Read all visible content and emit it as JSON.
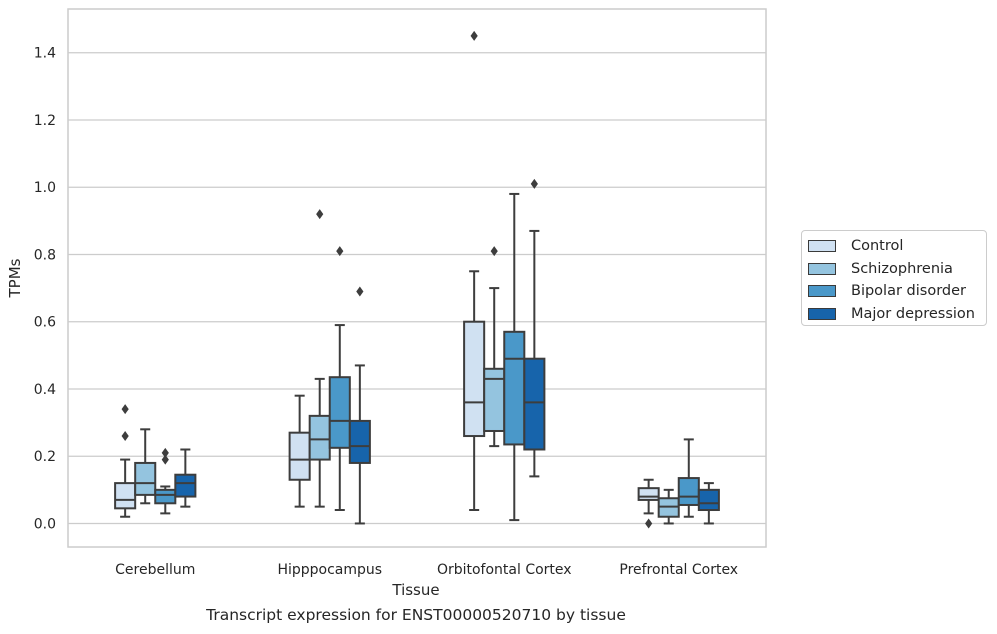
{
  "chart_data": {
    "type": "boxplot",
    "xlabel": "Tissue",
    "ylabel": "TPMs",
    "caption": "Transcript expression for ENST00000520710 by tissue",
    "ylim": [
      -0.07,
      1.53
    ],
    "yticks": [
      0.0,
      0.2,
      0.4,
      0.6,
      0.8,
      1.0,
      1.2,
      1.4
    ],
    "ytick_labels": [
      "0.0",
      "0.2",
      "0.4",
      "0.6",
      "0.8",
      "1.0",
      "1.2",
      "1.4"
    ],
    "categories": [
      "Cerebellum",
      "Hipppocampus",
      "Orbitofontal Cortex",
      "Prefrontal Cortex"
    ],
    "grid": "horizontal",
    "legend_position": "right",
    "series": [
      {
        "name": "Control",
        "color": "#d0e1f2",
        "boxes": [
          {
            "whislo": 0.02,
            "q1": 0.045,
            "med": 0.07,
            "q3": 0.12,
            "whishi": 0.19,
            "fliers": [
              0.26,
              0.34
            ]
          },
          {
            "whislo": 0.05,
            "q1": 0.13,
            "med": 0.19,
            "q3": 0.27,
            "whishi": 0.38,
            "fliers": []
          },
          {
            "whislo": 0.04,
            "q1": 0.26,
            "med": 0.36,
            "q3": 0.6,
            "whishi": 0.75,
            "fliers": [
              1.45
            ]
          },
          {
            "whislo": 0.03,
            "q1": 0.07,
            "med": 0.08,
            "q3": 0.105,
            "whishi": 0.13,
            "fliers": [
              0.0
            ]
          }
        ]
      },
      {
        "name": "Schizophrenia",
        "color": "#94c4df",
        "boxes": [
          {
            "whislo": 0.06,
            "q1": 0.085,
            "med": 0.12,
            "q3": 0.18,
            "whishi": 0.28,
            "fliers": []
          },
          {
            "whislo": 0.05,
            "q1": 0.19,
            "med": 0.25,
            "q3": 0.32,
            "whishi": 0.43,
            "fliers": [
              0.92
            ]
          },
          {
            "whislo": 0.23,
            "q1": 0.275,
            "med": 0.43,
            "q3": 0.46,
            "whishi": 0.7,
            "fliers": [
              0.81
            ]
          },
          {
            "whislo": 0.0,
            "q1": 0.02,
            "med": 0.05,
            "q3": 0.075,
            "whishi": 0.1,
            "fliers": []
          }
        ]
      },
      {
        "name": "Bipolar disorder",
        "color": "#4a98c9",
        "boxes": [
          {
            "whislo": 0.03,
            "q1": 0.06,
            "med": 0.085,
            "q3": 0.1,
            "whishi": 0.11,
            "fliers": [
              0.19,
              0.21
            ]
          },
          {
            "whislo": 0.04,
            "q1": 0.225,
            "med": 0.305,
            "q3": 0.435,
            "whishi": 0.59,
            "fliers": [
              0.81
            ]
          },
          {
            "whislo": 0.01,
            "q1": 0.235,
            "med": 0.49,
            "q3": 0.57,
            "whishi": 0.98,
            "fliers": []
          },
          {
            "whislo": 0.02,
            "q1": 0.055,
            "med": 0.08,
            "q3": 0.135,
            "whishi": 0.25,
            "fliers": []
          }
        ]
      },
      {
        "name": "Major depression",
        "color": "#1764ab",
        "boxes": [
          {
            "whislo": 0.05,
            "q1": 0.08,
            "med": 0.12,
            "q3": 0.145,
            "whishi": 0.22,
            "fliers": []
          },
          {
            "whislo": 0.0,
            "q1": 0.18,
            "med": 0.23,
            "q3": 0.305,
            "whishi": 0.47,
            "fliers": [
              0.69
            ]
          },
          {
            "whislo": 0.14,
            "q1": 0.22,
            "med": 0.36,
            "q3": 0.49,
            "whishi": 0.87,
            "fliers": [
              1.01
            ]
          },
          {
            "whislo": 0.0,
            "q1": 0.04,
            "med": 0.06,
            "q3": 0.1,
            "whishi": 0.12,
            "fliers": []
          }
        ]
      }
    ]
  },
  "colors": {
    "grid": "#cccccc",
    "axes_edge": "#cccccc",
    "box_edge": "#3d3d3d",
    "text": "#262626"
  }
}
